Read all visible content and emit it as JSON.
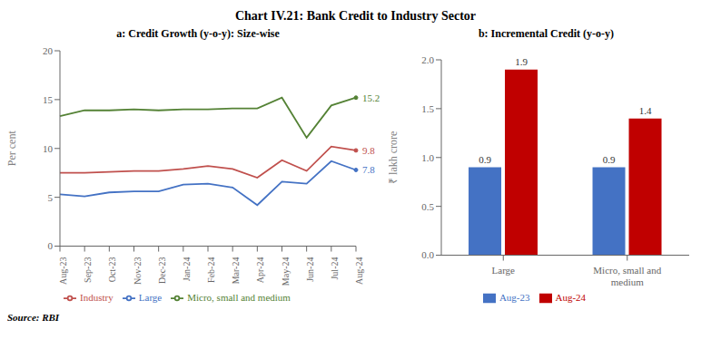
{
  "title": "Chart IV.21: Bank Credit to Industry Sector",
  "annotations": [
    "Source: RBI"
  ],
  "chart_data": [
    {
      "type": "line",
      "title": "a: Credit Growth (y-o-y): Size-wise",
      "categories": [
        "Aug-23",
        "Sep-23",
        "Oct-23",
        "Nov-23",
        "Dec-23",
        "Jan-24",
        "Feb-24",
        "Mar-24",
        "Apr-24",
        "May-24",
        "Jun-24",
        "Jul-24",
        "Aug-24"
      ],
      "series": [
        {
          "name": "Large",
          "color": "#4472C4",
          "values": [
            5.3,
            5.1,
            5.5,
            5.6,
            5.6,
            6.3,
            6.4,
            6.0,
            4.2,
            6.6,
            6.4,
            8.7,
            7.8
          ]
        },
        {
          "name": "Micro, small and medium",
          "color": "#548235",
          "values": [
            13.3,
            13.9,
            13.9,
            14.0,
            13.9,
            14.0,
            14.0,
            14.1,
            14.1,
            15.2,
            11.1,
            14.4,
            15.2
          ]
        },
        {
          "name": "Industry",
          "color": "#C0504D",
          "values": [
            7.5,
            7.5,
            7.6,
            7.7,
            7.7,
            7.9,
            8.2,
            7.9,
            7.0,
            8.8,
            7.7,
            10.2,
            9.8
          ]
        }
      ],
      "ylabel": "Per cent",
      "ylim": [
        0,
        20
      ],
      "yticks": [
        0,
        5,
        10,
        15,
        20
      ],
      "grid": false,
      "legend": "bottom",
      "annotations": [
        {
          "x": "Aug-24",
          "y": 7.8,
          "text": "7.8",
          "color": "#4472C4"
        },
        {
          "x": "Aug-24",
          "y": 15.2,
          "text": "15.2",
          "color": "#548235"
        },
        {
          "x": "Aug-24",
          "y": 9.8,
          "text": "9.8",
          "color": "#C0504D"
        }
      ]
    },
    {
      "type": "bar",
      "title": "b: Incremental Credit (y-o-y)",
      "categories": [
        "Large",
        "Micro, small and\nmedium"
      ],
      "series": [
        {
          "name": "Aug-23",
          "color": "#4472C4",
          "values": [
            0.9,
            0.9
          ]
        },
        {
          "name": "Aug-24",
          "color": "#C00000",
          "values": [
            1.9,
            1.4
          ]
        }
      ],
      "ylabel": "₹ lakh crore",
      "ylim": [
        0,
        2.0
      ],
      "yticks": [
        {
          "value": 0,
          "label": "0.0"
        },
        0.5,
        {
          "value": 1,
          "label": "1.0"
        },
        1.5,
        {
          "value": 2,
          "label": "2.0"
        }
      ],
      "grid": false,
      "legend": "bottom",
      "data_labels": true
    }
  ]
}
